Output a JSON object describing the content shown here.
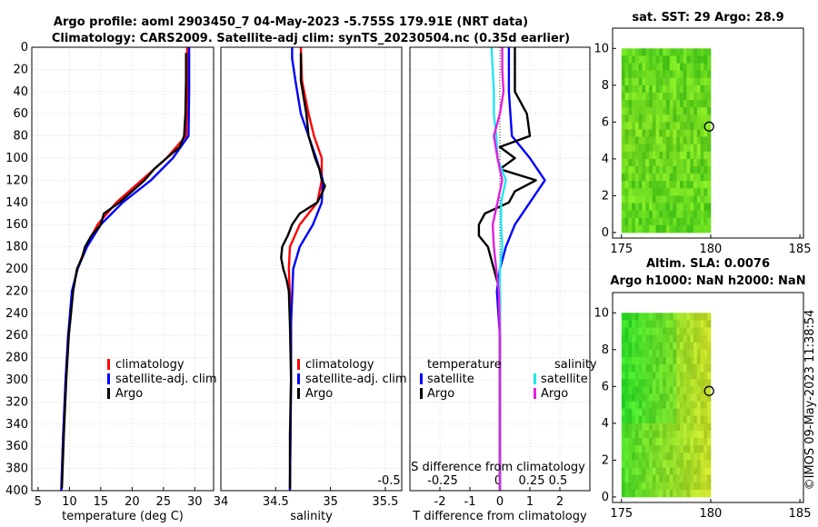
{
  "header": {
    "line1": "Argo profile: aoml 2903450_7 04-May-2023 -5.755S 179.91E (NRT data)",
    "line2": "Climatology: CARS2009. Satellite-adj clim: synTS_20230504.nc (0.35d earlier)"
  },
  "side_label": "©IMOS 09-May-2023 11:38:54",
  "colors": {
    "climatology": "#ff0000",
    "satellite": "#0000ff",
    "argo": "#000000",
    "sat_salinity": "#22e6f0",
    "argo_salinity": "#e020e0"
  },
  "depth_ticks": [
    "0",
    "20",
    "40",
    "60",
    "80",
    "100",
    "120",
    "140",
    "160",
    "180",
    "200",
    "220",
    "240",
    "260",
    "280",
    "300",
    "320",
    "340",
    "360",
    "380",
    "400"
  ],
  "chart_data": [
    {
      "type": "line",
      "title": "",
      "xlabel": "temperature (deg C)",
      "ylabel": "",
      "xlim": [
        4,
        33
      ],
      "ylim": [
        0,
        400
      ],
      "xticks": [
        "5",
        "10",
        "15",
        "20",
        "25",
        "30"
      ],
      "legend": [
        "climatology",
        "satellite-adj. clim",
        "Argo"
      ],
      "series": [
        {
          "name": "climatology",
          "depth": [
            0,
            40,
            80,
            100,
            120,
            140,
            160,
            180,
            200,
            220,
            260,
            300,
            350,
            400
          ],
          "values": [
            28.8,
            28.8,
            28.6,
            25.5,
            21.5,
            17.5,
            14.5,
            12.6,
            11.3,
            10.5,
            9.8,
            9.4,
            9.0,
            8.7
          ]
        },
        {
          "name": "satellite-adj. clim",
          "depth": [
            0,
            40,
            80,
            100,
            120,
            140,
            160,
            180,
            200,
            220,
            260,
            300,
            350,
            400
          ],
          "values": [
            29.1,
            29.1,
            29.0,
            26.5,
            23.0,
            18.5,
            15.0,
            12.8,
            11.3,
            10.4,
            9.8,
            9.4,
            9.0,
            8.7
          ]
        },
        {
          "name": "Argo",
          "depth": [
            5,
            30,
            60,
            80,
            90,
            100,
            110,
            120,
            130,
            140,
            150,
            160,
            170,
            180,
            190,
            200,
            220,
            260,
            300,
            350,
            398
          ],
          "values": [
            28.6,
            28.6,
            28.5,
            28.3,
            27.6,
            25.5,
            23.5,
            22.0,
            20.0,
            18.0,
            15.5,
            15.0,
            13.5,
            12.5,
            12.0,
            11.2,
            10.6,
            9.9,
            9.5,
            9.1,
            8.8
          ]
        }
      ]
    },
    {
      "type": "line",
      "xlabel": "salinity",
      "xlim": [
        34,
        35.65
      ],
      "ylim": [
        0,
        400
      ],
      "xticks": [
        "34",
        "34.5",
        "35",
        "35.5"
      ],
      "legend": [
        "climatology",
        "satellite-adj. clim",
        "Argo"
      ],
      "series": [
        {
          "name": "climatology",
          "depth": [
            0,
            30,
            60,
            80,
            100,
            120,
            140,
            160,
            180,
            200,
            250,
            300,
            400
          ],
          "values": [
            34.73,
            34.74,
            34.8,
            34.85,
            34.92,
            34.92,
            34.88,
            34.72,
            34.63,
            34.62,
            34.64,
            34.64,
            34.63
          ]
        },
        {
          "name": "satellite-adj. clim",
          "depth": [
            0,
            10,
            30,
            60,
            80,
            100,
            120,
            140,
            160,
            180,
            200,
            250,
            300,
            400
          ],
          "values": [
            34.65,
            34.65,
            34.68,
            34.73,
            34.8,
            34.87,
            34.93,
            34.92,
            34.84,
            34.72,
            34.66,
            34.64,
            34.64,
            34.63
          ]
        },
        {
          "name": "Argo",
          "depth": [
            5,
            30,
            60,
            80,
            100,
            110,
            120,
            125,
            130,
            140,
            150,
            160,
            170,
            180,
            190,
            200,
            210,
            220,
            250,
            300,
            350,
            398
          ],
          "values": [
            34.73,
            34.73,
            34.78,
            34.8,
            34.86,
            34.9,
            34.92,
            34.95,
            34.93,
            34.88,
            34.72,
            34.65,
            34.61,
            34.56,
            34.55,
            34.57,
            34.6,
            34.62,
            34.63,
            34.64,
            34.63,
            34.63
          ]
        }
      ]
    },
    {
      "type": "line",
      "xlabel": "T difference from climatology",
      "top_xlabel": "S difference from climatology",
      "xlim": [
        -3,
        3
      ],
      "ylim": [
        0,
        400
      ],
      "xticks": [
        "-2",
        "-1",
        "0",
        "1",
        "2"
      ],
      "top_xticks": [
        "-0.5",
        "-0.25",
        "0",
        "0.25",
        "0.5"
      ],
      "legend_temperature_title": "temperature",
      "legend_salinity_title": "salinity",
      "legend": [
        "satellite",
        "Argo",
        "satellite",
        "Argo"
      ],
      "series": [
        {
          "name": "temperature satellite",
          "depth": [
            0,
            40,
            80,
            100,
            120,
            140,
            160,
            180,
            200,
            220,
            260,
            300,
            350,
            400
          ],
          "values": [
            0.3,
            0.3,
            0.4,
            1.0,
            1.5,
            1.0,
            0.5,
            0.2,
            0.0,
            -0.1,
            0,
            0,
            0,
            0
          ]
        },
        {
          "name": "temperature Argo",
          "depth": [
            0,
            40,
            60,
            80,
            90,
            100,
            110,
            120,
            130,
            140,
            150,
            160,
            170,
            180,
            190,
            200,
            220,
            260,
            300,
            350,
            398
          ],
          "values": [
            0.5,
            0.5,
            0.9,
            1.0,
            0.0,
            0.5,
            0.0,
            1.2,
            0.5,
            0.3,
            -0.5,
            -0.7,
            -0.7,
            -0.4,
            -0.3,
            -0.2,
            0.0,
            0.0,
            0.0,
            0.0,
            0.0
          ]
        },
        {
          "name": "salinity satellite",
          "depth": [
            0,
            20,
            40,
            60,
            80,
            100,
            120,
            140,
            160,
            180,
            200,
            220,
            260,
            300,
            400
          ],
          "values": [
            -0.07,
            -0.06,
            -0.05,
            -0.05,
            -0.03,
            -0.02,
            0.05,
            0.01,
            0.01,
            0.02,
            0.0,
            0.0,
            0.0,
            0.0,
            0.0
          ]
        },
        {
          "name": "salinity Argo",
          "depth": [
            0,
            20,
            40,
            60,
            80,
            100,
            120,
            140,
            160,
            180,
            200,
            220,
            260,
            300,
            400
          ],
          "values": [
            0.02,
            0.02,
            0.03,
            0.0,
            -0.05,
            -0.02,
            0.02,
            -0.02,
            -0.06,
            -0.05,
            -0.03,
            -0.01,
            0.0,
            0.0,
            0.0
          ]
        }
      ]
    },
    {
      "type": "heatmap",
      "title": "sat. SST: 29 Argo: 28.9",
      "xlim": [
        174.5,
        185.2
      ],
      "ylim": [
        -0.3,
        11.1
      ],
      "xticks": [
        "175",
        "180",
        "185"
      ],
      "yticks": [
        "0",
        "2",
        "4",
        "6",
        "8",
        "10"
      ],
      "grid_x": [
        175,
        180
      ],
      "grid_y": [
        0,
        10
      ],
      "marker": [
        179.91,
        5.755
      ]
    },
    {
      "type": "heatmap",
      "title_line1": "Altim. SLA: 0.0076",
      "title_line2": "Argo h1000: NaN h2000: NaN",
      "xlim": [
        174.5,
        185.2
      ],
      "ylim": [
        -0.3,
        11.1
      ],
      "xticks": [
        "175",
        "180",
        "185"
      ],
      "yticks": [
        "0",
        "2",
        "4",
        "6",
        "8",
        "10"
      ],
      "grid_x": [
        175,
        180
      ],
      "grid_y": [
        0,
        10
      ],
      "marker": [
        179.91,
        5.755
      ]
    }
  ]
}
